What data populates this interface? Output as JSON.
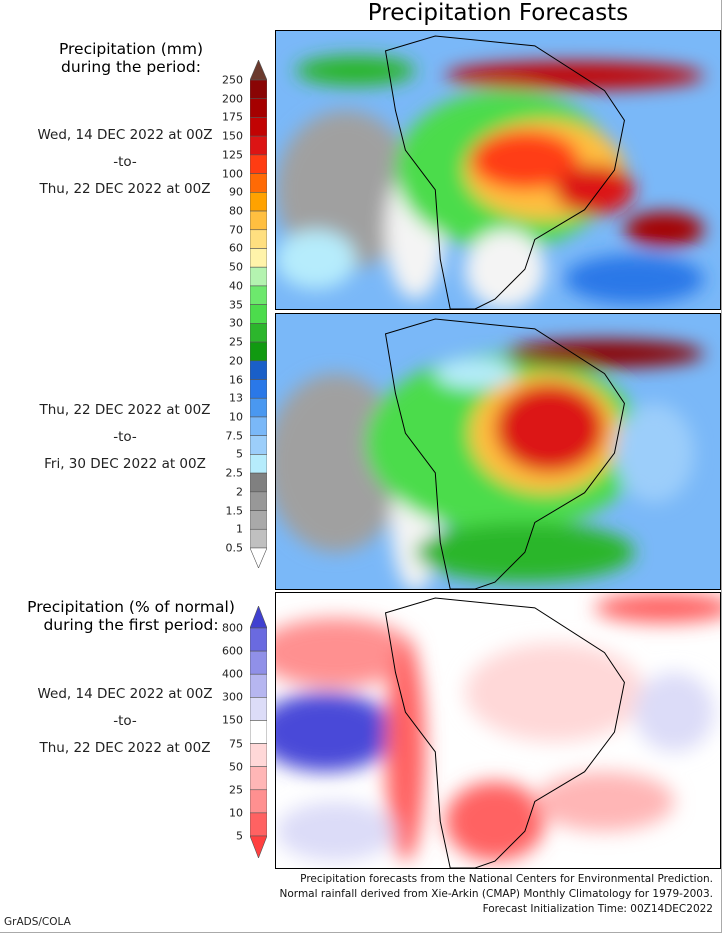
{
  "title": "Precipitation Forecasts",
  "section1": {
    "header": [
      "Precipitation (mm)",
      "during the period:"
    ],
    "period1": [
      "Wed, 14 DEC 2022 at 00Z",
      "-to-",
      "Thu, 22 DEC 2022 at 00Z"
    ],
    "period2": [
      "Thu, 22 DEC 2022 at 00Z",
      "-to-",
      "Fri, 30 DEC 2022 at 00Z"
    ]
  },
  "section2": {
    "header": [
      "Precipitation (% of normal)",
      "during the first period:"
    ],
    "period": [
      "Wed, 14 DEC 2022 at 00Z",
      "-to-",
      "Thu, 22 DEC 2022 at 00Z"
    ]
  },
  "precip_colorbar": {
    "labels": [
      "250",
      "200",
      "175",
      "150",
      "125",
      "100",
      "90",
      "80",
      "70",
      "60",
      "50",
      "40",
      "35",
      "30",
      "25",
      "20",
      "16",
      "13",
      "10",
      "7.5",
      "5",
      "2.5",
      "2",
      "1.5",
      "1",
      "0.5"
    ],
    "colors": [
      "#8a0505",
      "#a50000",
      "#c20303",
      "#dc1414",
      "#ff3c12",
      "#ff6a05",
      "#ffa200",
      "#ffbf40",
      "#ffdf80",
      "#fff3aa",
      "#b4f3b0",
      "#6de86d",
      "#4cdc4c",
      "#2cb62c",
      "#119a11",
      "#1a5fc8",
      "#2a78e8",
      "#4a98f0",
      "#7ab8f8",
      "#9ccefa",
      "#b6ecfc",
      "#808080",
      "#989898",
      "#a9a9a9",
      "#c0c0c0"
    ],
    "over_color": "#6b3a2e",
    "under_color": "#ffffff"
  },
  "percent_colorbar": {
    "labels": [
      "800",
      "600",
      "400",
      "300",
      "150",
      "75",
      "50",
      "25",
      "10",
      "5"
    ],
    "colors": [
      "#6a6ae0",
      "#9090e8",
      "#b6b6f0",
      "#dcdcf8",
      "#ffffff",
      "#ffd8d8",
      "#ffb6b6",
      "#ff9090",
      "#ff6262"
    ],
    "over_color": "#4040d0",
    "under_color": "#ff4040"
  },
  "footer": [
    "Precipitation forecasts from the National Centers for Environmental Prediction.",
    "Normal rainfall derived from Xie-Arkin (CMAP) Monthly Climatology for 1979-2003.",
    "Forecast Initialization Time: 00Z14DEC2022"
  ],
  "credit": "GrADS/COLA"
}
